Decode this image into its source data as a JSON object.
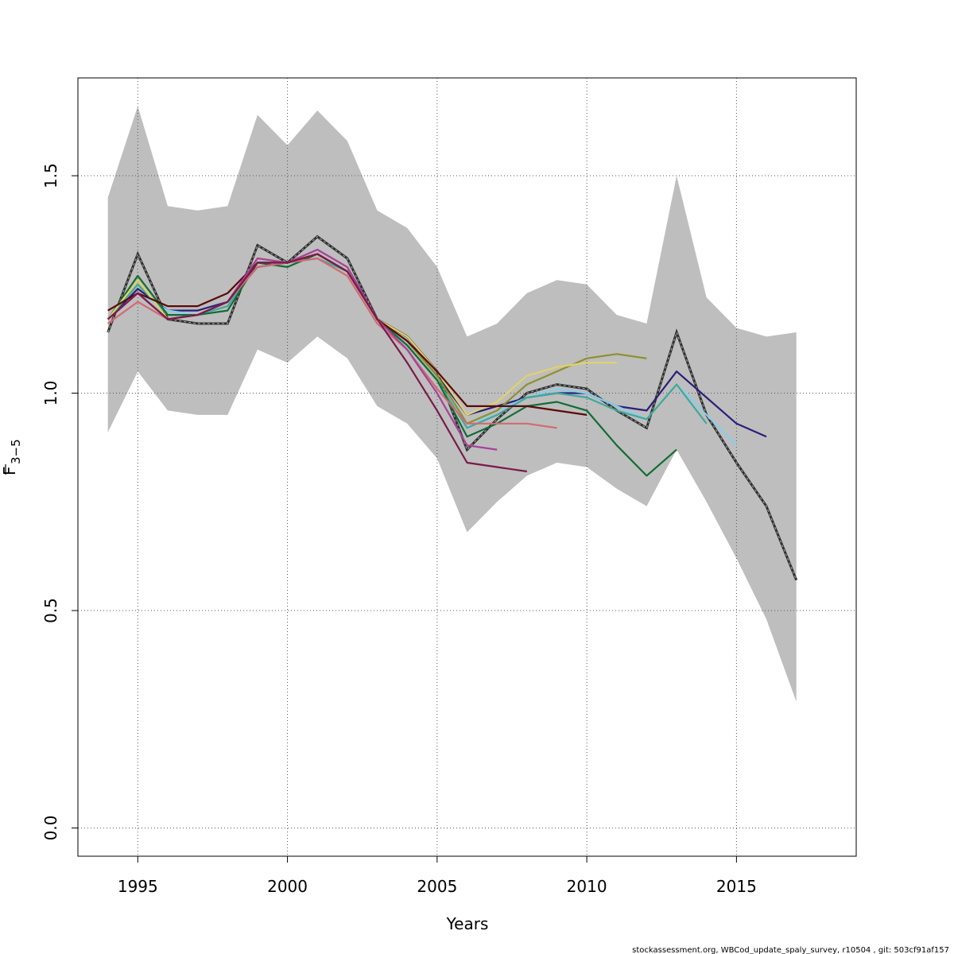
{
  "chart_data": {
    "type": "line",
    "title": "",
    "xlabel": "Years",
    "ylabel_main": "F",
    "ylabel_sub": "3−5",
    "xlim": [
      1993,
      2019
    ],
    "ylim": [
      -0.065,
      1.725
    ],
    "xticks": [
      1995,
      2000,
      2005,
      2010,
      2015
    ],
    "yticks": [
      0.0,
      0.5,
      1.0,
      1.5
    ],
    "ytick_labels": [
      "0.0",
      "0.5",
      "1.0",
      "1.5"
    ],
    "grid": true,
    "legend": "none",
    "confidence_band": {
      "color": "#bebebe",
      "x": [
        1994,
        1995,
        1996,
        1997,
        1998,
        1999,
        2000,
        2001,
        2002,
        2003,
        2004,
        2005,
        2006,
        2007,
        2008,
        2009,
        2010,
        2011,
        2012,
        2013,
        2014,
        2015,
        2016,
        2017
      ],
      "upper": [
        1.45,
        1.66,
        1.43,
        1.42,
        1.43,
        1.64,
        1.57,
        1.65,
        1.58,
        1.42,
        1.38,
        1.29,
        1.13,
        1.16,
        1.23,
        1.26,
        1.25,
        1.18,
        1.16,
        1.5,
        1.22,
        1.15,
        1.13,
        1.14
      ],
      "lower": [
        0.91,
        1.05,
        0.96,
        0.95,
        0.95,
        1.1,
        1.07,
        1.13,
        1.08,
        0.97,
        0.93,
        0.85,
        0.68,
        0.75,
        0.81,
        0.84,
        0.83,
        0.78,
        0.74,
        0.87,
        0.75,
        0.62,
        0.48,
        0.29
      ]
    },
    "series": [
      {
        "color": "#2d2d2d",
        "dashed": true,
        "x": [
          1994,
          1995,
          1996,
          1997,
          1998,
          1999,
          2000,
          2001,
          2002,
          2003,
          2004,
          2005,
          2006,
          2007,
          2008,
          2009,
          2010,
          2011,
          2012,
          2013,
          2014,
          2015,
          2016,
          2017
        ],
        "values": [
          1.14,
          1.32,
          1.17,
          1.16,
          1.16,
          1.34,
          1.3,
          1.36,
          1.31,
          1.17,
          1.13,
          1.05,
          0.87,
          0.94,
          1.0,
          1.02,
          1.01,
          0.96,
          0.92,
          1.14,
          0.95,
          0.84,
          0.74,
          0.57
        ]
      },
      {
        "color": "#2a1f7a",
        "x": [
          1994,
          1995,
          1996,
          1997,
          1998,
          1999,
          2000,
          2001,
          2002,
          2003,
          2004,
          2005,
          2006,
          2007,
          2008,
          2009,
          2010,
          2011,
          2012,
          2013,
          2014,
          2015,
          2016
        ],
        "values": [
          1.17,
          1.24,
          1.19,
          1.19,
          1.21,
          1.29,
          1.3,
          1.32,
          1.28,
          1.17,
          1.12,
          1.04,
          0.95,
          0.97,
          0.99,
          1.0,
          1.0,
          0.97,
          0.96,
          1.05,
          0.99,
          0.93,
          0.9
        ]
      },
      {
        "color": "#87ceeb",
        "x": [
          1994,
          1995,
          1996,
          1997,
          1998,
          1999,
          2000,
          2001,
          2002,
          2003,
          2004,
          2005,
          2006,
          2007,
          2008,
          2009,
          2010,
          2011,
          2012,
          2013,
          2014,
          2015
        ],
        "values": [
          1.17,
          1.23,
          1.19,
          1.18,
          1.21,
          1.3,
          1.3,
          1.31,
          1.28,
          1.17,
          1.11,
          1.03,
          0.92,
          0.96,
          0.99,
          1.01,
          1.0,
          0.97,
          0.94,
          1.02,
          0.95,
          0.88
        ]
      },
      {
        "color": "#3fa99a",
        "x": [
          1994,
          1995,
          1996,
          1997,
          1998,
          1999,
          2000,
          2001,
          2002,
          2003,
          2004,
          2005,
          2006,
          2007,
          2008,
          2009,
          2010,
          2011,
          2012,
          2013,
          2014
        ],
        "values": [
          1.17,
          1.25,
          1.18,
          1.18,
          1.2,
          1.3,
          1.3,
          1.31,
          1.28,
          1.17,
          1.11,
          1.03,
          0.92,
          0.95,
          0.99,
          1.0,
          0.99,
          0.96,
          0.94,
          1.02,
          0.93
        ]
      },
      {
        "color": "#0f6e35",
        "x": [
          1994,
          1995,
          1996,
          1997,
          1998,
          1999,
          2000,
          2001,
          2002,
          2003,
          2004,
          2005,
          2006,
          2007,
          2008,
          2009,
          2010,
          2011,
          2012,
          2013
        ],
        "values": [
          1.17,
          1.27,
          1.18,
          1.18,
          1.19,
          1.3,
          1.29,
          1.32,
          1.28,
          1.17,
          1.11,
          1.03,
          0.9,
          0.93,
          0.97,
          0.98,
          0.96,
          0.88,
          0.81,
          0.87
        ]
      },
      {
        "color": "#8f8f2e",
        "x": [
          1994,
          1995,
          1996,
          1997,
          1998,
          1999,
          2000,
          2001,
          2002,
          2003,
          2004,
          2005,
          2006,
          2007,
          2008,
          2009,
          2010,
          2011,
          2012
        ],
        "values": [
          1.17,
          1.26,
          1.17,
          1.18,
          1.21,
          1.31,
          1.3,
          1.32,
          1.28,
          1.17,
          1.12,
          1.04,
          0.93,
          0.96,
          1.02,
          1.05,
          1.08,
          1.09,
          1.08
        ]
      },
      {
        "color": "#e0d26a",
        "x": [
          1994,
          1995,
          1996,
          1997,
          1998,
          1999,
          2000,
          2001,
          2002,
          2003,
          2004,
          2005,
          2006,
          2007,
          2008,
          2009,
          2010,
          2011
        ],
        "values": [
          1.17,
          1.26,
          1.17,
          1.18,
          1.21,
          1.31,
          1.3,
          1.32,
          1.28,
          1.17,
          1.13,
          1.05,
          0.95,
          0.98,
          1.04,
          1.06,
          1.07,
          1.07
        ]
      },
      {
        "color": "#5a0a0a",
        "x": [
          1994,
          1995,
          1996,
          1997,
          1998,
          1999,
          2000,
          2001,
          2002,
          2003,
          2004,
          2005,
          2006,
          2007,
          2008,
          2009,
          2010
        ],
        "values": [
          1.19,
          1.23,
          1.2,
          1.2,
          1.23,
          1.3,
          1.3,
          1.32,
          1.28,
          1.17,
          1.12,
          1.05,
          0.97,
          0.97,
          0.97,
          0.96,
          0.95
        ]
      },
      {
        "color": "#d26a72",
        "x": [
          1994,
          1995,
          1996,
          1997,
          1998,
          1999,
          2000,
          2001,
          2002,
          2003,
          2004,
          2005,
          2006,
          2007,
          2008,
          2009
        ],
        "values": [
          1.16,
          1.21,
          1.17,
          1.18,
          1.21,
          1.29,
          1.3,
          1.31,
          1.27,
          1.16,
          1.1,
          1.01,
          0.93,
          0.93,
          0.93,
          0.92
        ]
      },
      {
        "color": "#a8409a",
        "x": [
          1994,
          1995,
          1996,
          1997,
          1998,
          1999,
          2000,
          2001,
          2002,
          2003,
          2004,
          2005,
          2006,
          2007
        ],
        "values": [
          1.17,
          1.23,
          1.17,
          1.18,
          1.21,
          1.31,
          1.3,
          1.33,
          1.29,
          1.17,
          1.1,
          1.0,
          0.88,
          0.87
        ]
      },
      {
        "color": "#7a1a4a",
        "x": [
          1994,
          1995,
          1996,
          1997,
          1998,
          1999,
          2000,
          2001,
          2002,
          2003,
          2004,
          2005,
          2006,
          2007,
          2008
        ],
        "values": [
          1.17,
          1.23,
          1.17,
          1.18,
          1.21,
          1.3,
          1.3,
          1.32,
          1.28,
          1.17,
          1.07,
          0.96,
          0.84,
          0.83,
          0.82
        ]
      }
    ]
  },
  "footer": "stockassessment.org, WBCod_update_spaly_survey, r10504 , git: 503cf91af157"
}
